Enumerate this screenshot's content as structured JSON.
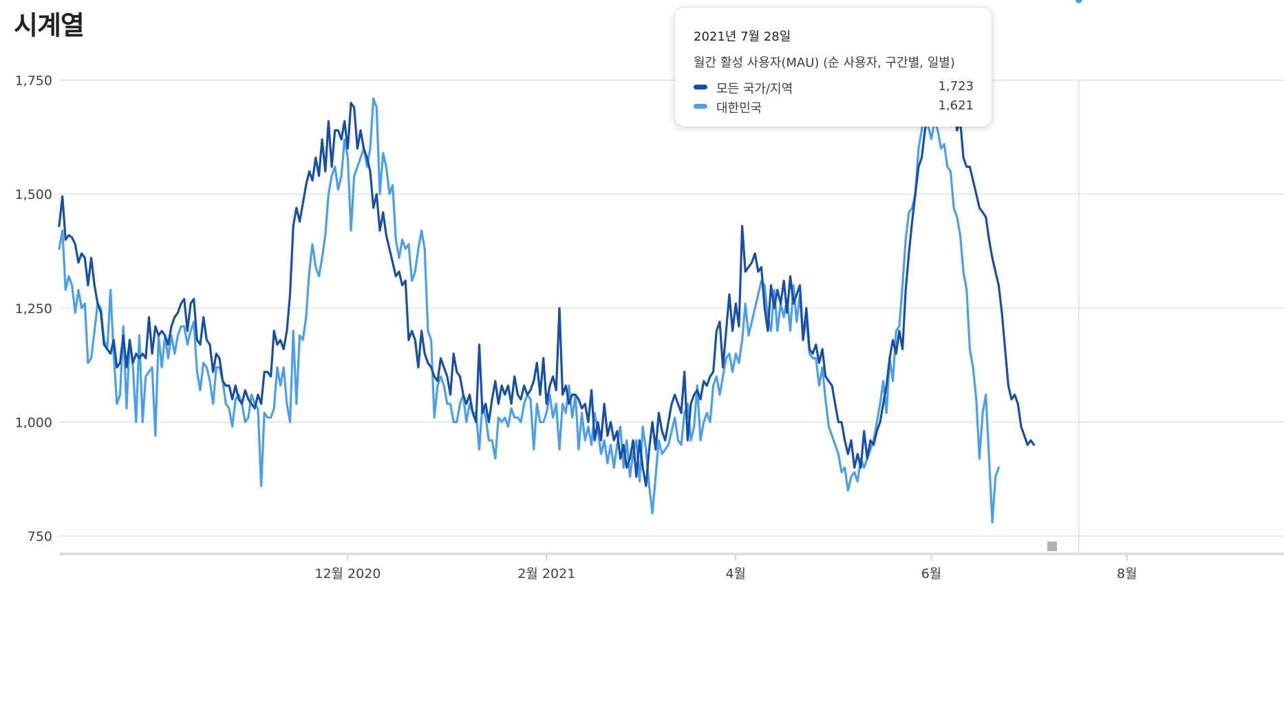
{
  "page": {
    "title": "시계열"
  },
  "tooltip": {
    "date": "2021년 7월 28일",
    "metric": "월간 활성 사용자(MAU) (순 사용자, 구간별, 일별)",
    "rows": [
      {
        "name": "모든 국가/지역",
        "value": "1,723"
      },
      {
        "name": "대한민국",
        "value": "1,621"
      }
    ]
  },
  "chart_data": {
    "type": "line",
    "title": "시계열",
    "xlabel": "",
    "ylabel": "",
    "ylim": [
      710,
      1790
    ],
    "yticks": [
      750,
      1000,
      1250,
      1500,
      1750
    ],
    "ytick_labels": [
      "750",
      "1,000",
      "1,250",
      "1,500",
      "1,750"
    ],
    "xticks": [
      {
        "label": "12월 2020",
        "index": 90
      },
      {
        "label": "2월 2021",
        "index": 152
      },
      {
        "label": "4월",
        "index": 211
      },
      {
        "label": "6월",
        "index": 272
      },
      {
        "label": "8월",
        "index": 333
      }
    ],
    "x_count": 341,
    "highlight_index": 318,
    "colors": {
      "all_regions": "#174ea6",
      "korea": "#4b9fea"
    },
    "grid": true,
    "series": [
      {
        "name": "모든 국가/지역",
        "values": [
          1430,
          1495,
          1400,
          1410,
          1405,
          1390,
          1350,
          1370,
          1360,
          1300,
          1360,
          1300,
          1260,
          1240,
          1170,
          1160,
          1150,
          1180,
          1120,
          1130,
          1190,
          1120,
          1180,
          1130,
          1150,
          1140,
          1150,
          1140,
          1230,
          1150,
          1210,
          1190,
          1200,
          1190,
          1170,
          1210,
          1230,
          1240,
          1260,
          1270,
          1200,
          1260,
          1270,
          1180,
          1170,
          1230,
          1180,
          1170,
          1110,
          1150,
          1140,
          1090,
          1080,
          1080,
          1050,
          1080,
          1050,
          1040,
          1070,
          1050,
          1040,
          1030,
          1060,
          1040,
          1110,
          1110,
          1100,
          1200,
          1170,
          1180,
          1160,
          1200,
          1280,
          1430,
          1470,
          1440,
          1480,
          1520,
          1550,
          1530,
          1580,
          1540,
          1620,
          1550,
          1660,
          1560,
          1640,
          1640,
          1620,
          1660,
          1600,
          1700,
          1690,
          1600,
          1640,
          1600,
          1580,
          1550,
          1470,
          1500,
          1420,
          1460,
          1410,
          1380,
          1350,
          1320,
          1330,
          1300,
          1310,
          1180,
          1200,
          1180,
          1120,
          1200,
          1150,
          1130,
          1120,
          1100,
          1090,
          1140,
          1120,
          1100,
          1060,
          1150,
          1110,
          1100,
          1060,
          1040,
          1060,
          1020,
          1000,
          1170,
          1020,
          1040,
          1000,
          1050,
          1090,
          1040,
          1080,
          1060,
          1080,
          1040,
          1100,
          1060,
          1050,
          1080,
          1060,
          1070,
          1090,
          1130,
          1060,
          1140,
          1040,
          1080,
          1100,
          1070,
          1250,
          1060,
          1080,
          1040,
          1060,
          1060,
          1050,
          1030,
          1040,
          1000,
          1070,
          960,
          1000,
          960,
          1040,
          970,
          1000,
          960,
          980,
          920,
          950,
          900,
          920,
          960,
          880,
          960,
          900,
          860,
          940,
          1000,
          940,
          1020,
          980,
          960,
          1000,
          1040,
          1060,
          1040,
          1020,
          1110,
          960,
          1040,
          1060,
          1070,
          1050,
          1090,
          1080,
          1100,
          1110,
          1200,
          1220,
          1120,
          1200,
          1280,
          1200,
          1260,
          1210,
          1430,
          1330,
          1340,
          1350,
          1370,
          1330,
          1340,
          1250,
          1200,
          1300,
          1250,
          1290,
          1260,
          1310,
          1240,
          1320,
          1260,
          1280,
          1300,
          1180,
          1250,
          1160,
          1150,
          1170,
          1130,
          1160,
          1100,
          1090,
          1080,
          1040,
          1000,
          1000,
          960,
          930,
          960,
          900,
          930,
          900,
          980,
          920,
          960,
          950,
          980,
          1000,
          1040,
          1080,
          1140,
          1180,
          1150,
          1200,
          1160,
          1290,
          1370,
          1440,
          1500,
          1560,
          1580,
          1640,
          1680,
          1700,
          1660,
          1720,
          1723,
          1680,
          1700,
          1650,
          1680,
          1640,
          1660,
          1580,
          1560,
          1560,
          1530,
          1500,
          1470,
          1460,
          1450,
          1400,
          1360,
          1330,
          1300,
          1240,
          1160,
          1080,
          1050,
          1060,
          1040,
          990,
          970,
          950,
          960,
          950
        ]
      },
      {
        "name": "대한민국",
        "values": [
          1380,
          1420,
          1290,
          1320,
          1300,
          1240,
          1290,
          1250,
          1260,
          1130,
          1140,
          1200,
          1260,
          1250,
          1180,
          1160,
          1290,
          1150,
          1040,
          1060,
          1210,
          1030,
          1180,
          1120,
          1000,
          1190,
          1000,
          1100,
          1110,
          1120,
          970,
          1190,
          1120,
          1190,
          1140,
          1190,
          1150,
          1190,
          1210,
          1210,
          1170,
          1200,
          1220,
          1110,
          1070,
          1130,
          1120,
          1090,
          1040,
          1120,
          1120,
          1090,
          1040,
          1030,
          990,
          1050,
          1060,
          1040,
          1000,
          1010,
          1060,
          1040,
          1030,
          860,
          1020,
          1010,
          1010,
          1030,
          1120,
          1080,
          1120,
          1040,
          1000,
          1200,
          1040,
          1190,
          1180,
          1230,
          1330,
          1390,
          1340,
          1320,
          1360,
          1410,
          1500,
          1540,
          1560,
          1510,
          1540,
          1620,
          1580,
          1420,
          1540,
          1560,
          1580,
          1600,
          1560,
          1600,
          1710,
          1690,
          1500,
          1590,
          1560,
          1500,
          1520,
          1400,
          1360,
          1400,
          1380,
          1390,
          1310,
          1330,
          1380,
          1420,
          1380,
          1200,
          1180,
          1010,
          1080,
          1100,
          1080,
          1040,
          1040,
          1000,
          1000,
          1040,
          1060,
          1000,
          1040,
          1020,
          1020,
          940,
          1040,
          1010,
          960,
          960,
          920,
          1010,
          1000,
          1010,
          990,
          1030,
          1010,
          1010,
          1000,
          1040,
          1060,
          1050,
          940,
          1040,
          1000,
          1000,
          1020,
          1060,
          1010,
          1040,
          940,
          1040,
          1020,
          1080,
          1010,
          1060,
          940,
          1020,
          960,
          990,
          950,
          1020,
          980,
          930,
          960,
          910,
          950,
          900,
          950,
          990,
          900,
          960,
          880,
          930,
          960,
          870,
          990,
          940,
          860,
          800,
          880,
          960,
          930,
          940,
          950,
          980,
          1010,
          960,
          950,
          1020,
          1040,
          960,
          990,
          1080,
          960,
          1000,
          1020,
          1000,
          1080,
          1100,
          1060,
          1100,
          1140,
          1150,
          1110,
          1150,
          1130,
          1180,
          1260,
          1190,
          1220,
          1250,
          1280,
          1310,
          1300,
          1230,
          1200,
          1290,
          1200,
          1260,
          1230,
          1270,
          1200,
          1300,
          1220,
          1280,
          1180,
          1230,
          1150,
          1140,
          1140,
          1080,
          1120,
          1050,
          990,
          970,
          950,
          930,
          890,
          900,
          850,
          880,
          890,
          870,
          920,
          900,
          920,
          940,
          960,
          1000,
          1040,
          1090,
          1020,
          1140,
          1090,
          1200,
          1210,
          1300,
          1400,
          1460,
          1470,
          1500,
          1600,
          1640,
          1690,
          1650,
          1621,
          1660,
          1640,
          1600,
          1610,
          1560,
          1550,
          1470,
          1450,
          1410,
          1330,
          1290,
          1160,
          1120,
          1050,
          920,
          1020,
          1060,
          920,
          780,
          880,
          900
        ]
      }
    ]
  }
}
